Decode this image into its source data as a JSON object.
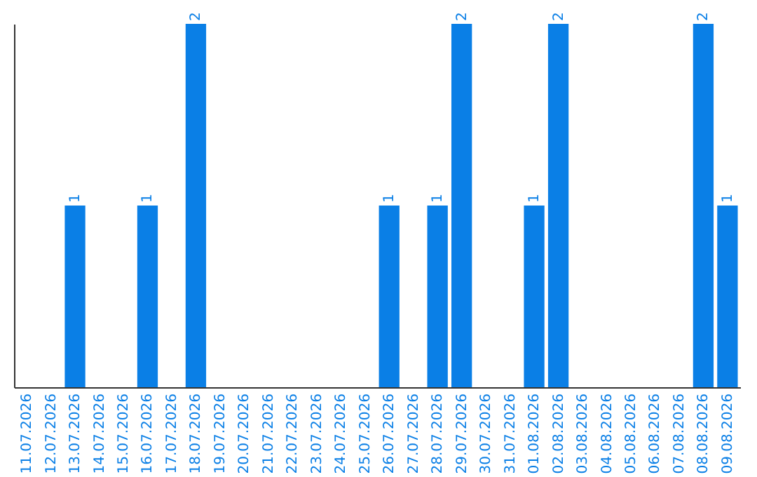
{
  "chart_data": {
    "type": "bar",
    "categories": [
      "11.07.2026",
      "12.07.2026",
      "13.07.2026",
      "14.07.2026",
      "15.07.2026",
      "16.07.2026",
      "17.07.2026",
      "18.07.2026",
      "19.07.2026",
      "20.07.2026",
      "21.07.2026",
      "22.07.2026",
      "23.07.2026",
      "24.07.2026",
      "25.07.2026",
      "26.07.2026",
      "27.07.2026",
      "28.07.2026",
      "29.07.2026",
      "30.07.2026",
      "31.07.2026",
      "01.08.2026",
      "02.08.2026",
      "03.08.2026",
      "04.08.2026",
      "05.08.2026",
      "06.08.2026",
      "07.08.2026",
      "08.08.2026",
      "09.08.2026"
    ],
    "values": [
      0,
      0,
      1,
      0,
      0,
      1,
      0,
      2,
      0,
      0,
      0,
      0,
      0,
      0,
      0,
      1,
      0,
      1,
      2,
      0,
      0,
      1,
      2,
      0,
      0,
      0,
      0,
      0,
      2,
      1
    ],
    "value_labels": [
      null,
      null,
      "1",
      null,
      null,
      "1",
      null,
      "2",
      null,
      null,
      null,
      null,
      null,
      null,
      null,
      "1",
      null,
      "1",
      "2",
      null,
      null,
      "1",
      "2",
      null,
      null,
      null,
      null,
      null,
      "2",
      "1"
    ],
    "color": "#0a7fe6",
    "tick_labels": "x",
    "grid": false
  }
}
